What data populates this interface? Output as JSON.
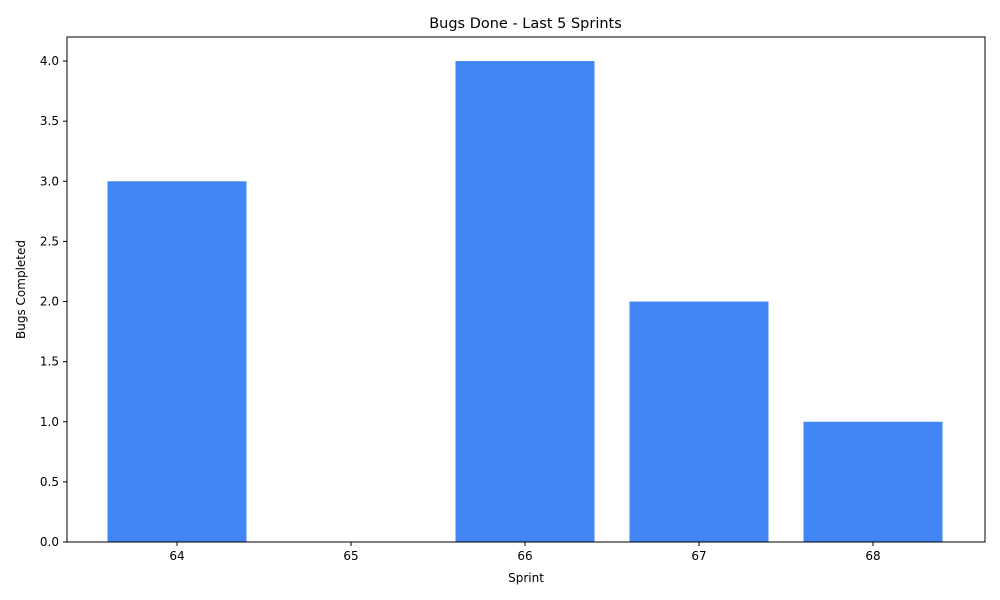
{
  "chart_data": {
    "type": "bar",
    "title": "Bugs Done - Last 5 Sprints",
    "xlabel": "Sprint",
    "ylabel": "Bugs Completed",
    "categories": [
      "64",
      "65",
      "66",
      "67",
      "68"
    ],
    "values": [
      3,
      0,
      4,
      2,
      1
    ],
    "ylim": [
      0,
      4.2
    ],
    "yticks": [
      "0.0",
      "0.5",
      "1.0",
      "1.5",
      "2.0",
      "2.5",
      "3.0",
      "3.5",
      "4.0"
    ],
    "grid": false,
    "legend": "none",
    "bar_color": "#4285f4"
  }
}
